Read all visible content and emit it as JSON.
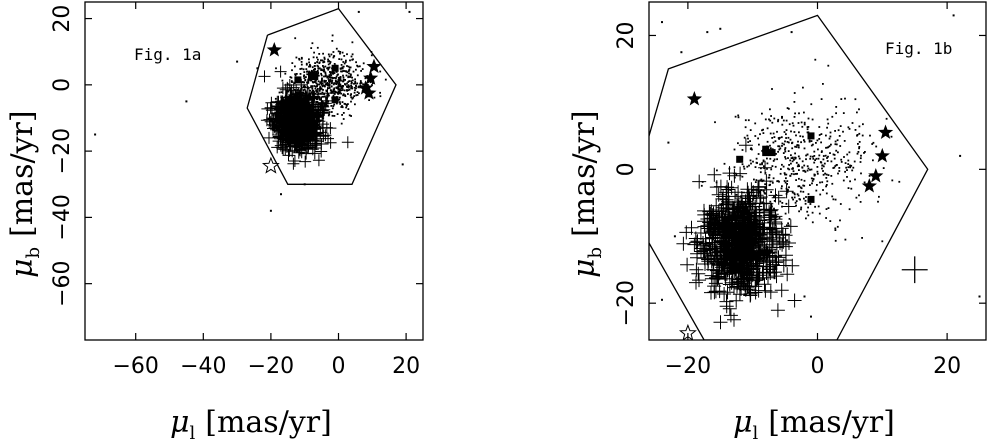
{
  "figure": {
    "panels": [
      {
        "annotation": "Fig. 1a",
        "xlabel": "μ",
        "xlabel_sub": "l",
        "xlabel_unit": "[mas/yr]",
        "ylabel": "μ",
        "ylabel_sub": "b",
        "ylabel_unit": "[mas/yr]"
      },
      {
        "annotation": "Fig. 1b",
        "xlabel": "μ",
        "xlabel_sub": "l",
        "xlabel_unit": "[mas/yr]",
        "ylabel": "μ",
        "ylabel_sub": "b",
        "ylabel_unit": "[mas/yr]"
      }
    ]
  },
  "chart_data": [
    {
      "type": "scatter",
      "annotation": "Fig. 1a",
      "xlabel": "μl [mas/yr]",
      "ylabel": "μb [mas/yr]",
      "xlim": [
        -75,
        25
      ],
      "ylim": [
        -77,
        25
      ],
      "xticks": [
        -60,
        -40,
        -20,
        0,
        20
      ],
      "yticks": [
        20,
        0,
        -20,
        -40,
        -60
      ],
      "grid": false,
      "polygon": [
        [
          -21,
          15
        ],
        [
          0,
          23
        ],
        [
          17,
          0
        ],
        [
          4,
          -30
        ],
        [
          -15,
          -30
        ],
        [
          -27,
          -7
        ],
        [
          -21,
          15
        ]
      ],
      "stars_filled": [
        [
          -19,
          10.5
        ],
        [
          10.5,
          5.5
        ],
        [
          9.5,
          2
        ],
        [
          8,
          -1
        ],
        [
          9,
          -2.5
        ]
      ],
      "stars_open": [
        [
          -20,
          -24.5
        ]
      ],
      "squares": [
        [
          -12,
          1.5
        ],
        [
          -8,
          3
        ],
        [
          -8,
          2.5
        ],
        [
          -7,
          2.5
        ],
        [
          -1,
          5
        ],
        [
          -1,
          -4.5
        ]
      ],
      "crosses_cluster": {
        "center": [
          -12,
          -11
        ],
        "spread": [
          3.2,
          4.0
        ]
      },
      "dots_cluster": {
        "center": [
          -3,
          1
        ],
        "spread": [
          5.5,
          4.5
        ]
      },
      "field_dots": [
        [
          -45,
          -5
        ],
        [
          -30,
          7
        ],
        [
          -72,
          -15
        ],
        [
          21,
          22
        ],
        [
          19,
          -24
        ],
        [
          -20,
          -38
        ],
        [
          -10,
          -30
        ],
        [
          -17,
          -33
        ],
        [
          6,
          22
        ],
        [
          -24,
          5
        ]
      ]
    },
    {
      "type": "scatter",
      "annotation": "Fig. 1b",
      "xlabel": "μl [mas/yr]",
      "ylabel": "μb [mas/yr]",
      "xlim": [
        -26,
        26
      ],
      "ylim": [
        -25.5,
        25
      ],
      "xticks": [
        -20,
        0,
        20
      ],
      "yticks": [
        20,
        0,
        -20
      ],
      "grid": false,
      "polygon": [
        [
          -26,
          5
        ],
        [
          -23,
          15
        ],
        [
          0,
          23
        ],
        [
          17,
          0
        ],
        [
          3,
          -25.5
        ],
        [
          -17.5,
          -25.5
        ],
        [
          -26,
          -11
        ]
      ],
      "error_bar": {
        "x": 15,
        "y": -15,
        "dx": 2,
        "dy": 2
      },
      "stars_filled": [
        [
          -19,
          10.5
        ],
        [
          10.5,
          5.5
        ],
        [
          10,
          2
        ],
        [
          9,
          -1
        ],
        [
          8,
          -2.5
        ]
      ],
      "stars_open": [
        [
          -20,
          -24.5
        ]
      ],
      "squares": [
        [
          -12,
          1.5
        ],
        [
          -8,
          3
        ],
        [
          -8,
          2.5
        ],
        [
          -7,
          2.5
        ],
        [
          -1,
          5
        ],
        [
          -1,
          -4.5
        ]
      ],
      "crosses_cluster": {
        "center": [
          -12,
          -11
        ],
        "spread": [
          3.0,
          3.6
        ]
      },
      "dots_cluster": {
        "center": [
          -3,
          1
        ],
        "spread": [
          5.5,
          4.5
        ]
      },
      "field_dots": [
        [
          -21,
          17.5
        ],
        [
          -17,
          20.5
        ],
        [
          -4,
          20.5
        ],
        [
          -23,
          4
        ],
        [
          -22,
          -10
        ],
        [
          -2,
          -19
        ],
        [
          -1,
          -22
        ],
        [
          -15,
          21
        ],
        [
          -24,
          22
        ],
        [
          22,
          2
        ],
        [
          25,
          -19
        ],
        [
          21,
          23
        ],
        [
          -24,
          -19.5
        ]
      ]
    }
  ]
}
